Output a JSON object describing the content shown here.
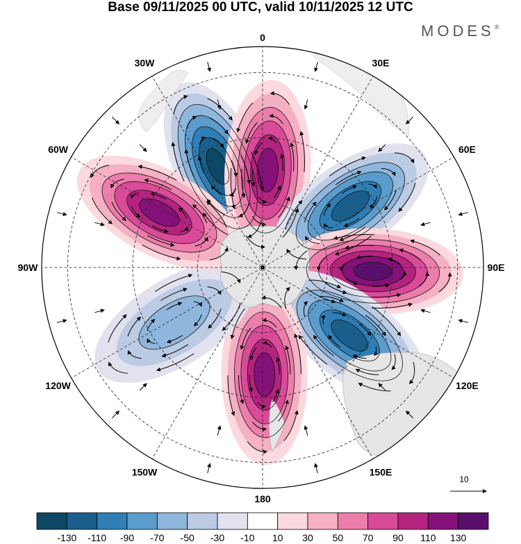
{
  "title": "Base 09/11/2025 00 UTC, valid 10/11/2025 12 UTC",
  "brand": "MODES",
  "brand_mark": "®",
  "longitude_labels": [
    "0",
    "30E",
    "60E",
    "90E",
    "120E",
    "150E",
    "180",
    "150W",
    "120W",
    "90W",
    "60W",
    "30W"
  ],
  "vector_reference": {
    "label": "10"
  },
  "colorbar": {
    "colors": [
      "#0d4766",
      "#1a5f8c",
      "#2f7fb6",
      "#5a9ccc",
      "#8fb6dc",
      "#bccbe4",
      "#e2e2ef",
      "#ffffff",
      "#fbd9de",
      "#f5b0c3",
      "#ec7eab",
      "#d94a98",
      "#b4247f",
      "#86117a",
      "#5b0f6c"
    ],
    "tick_labels": [
      "-130",
      "-110",
      "-90",
      "-70",
      "-50",
      "-30",
      "-10",
      "10",
      "30",
      "50",
      "70",
      "90",
      "110",
      "130"
    ]
  },
  "anomaly_centers": [
    {
      "lon": -24,
      "colat": 34,
      "value": -135
    },
    {
      "lon": 3,
      "colat": 30,
      "value": 120
    },
    {
      "lon": 55,
      "colat": 33,
      "value": -130
    },
    {
      "lon": 92,
      "colat": 34,
      "value": 135
    },
    {
      "lon": 128,
      "colat": 34,
      "value": -125
    },
    {
      "lon": 179,
      "colat": 33,
      "value": 115
    },
    {
      "lon": -122,
      "colat": 32,
      "value": -60
    },
    {
      "lon": -62,
      "colat": 36,
      "value": 130
    }
  ]
}
